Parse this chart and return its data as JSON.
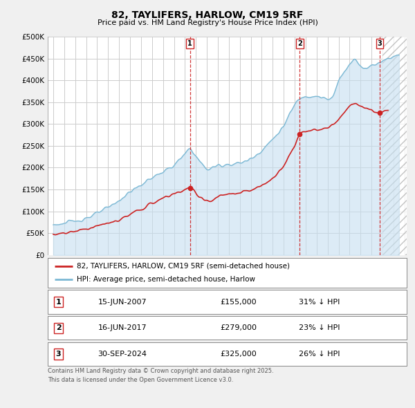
{
  "title": "82, TAYLIFERS, HARLOW, CM19 5RF",
  "subtitle": "Price paid vs. HM Land Registry's House Price Index (HPI)",
  "bg_color": "#f0f0f0",
  "plot_bg": "#ffffff",
  "grid_color": "#cccccc",
  "hpi_color": "#7bb8d4",
  "hpi_fill": "#c5dff0",
  "price_color": "#cc2222",
  "vline_color": "#cc2222",
  "ylim": [
    0,
    500000
  ],
  "yticks": [
    0,
    50000,
    100000,
    150000,
    200000,
    250000,
    300000,
    350000,
    400000,
    450000,
    500000
  ],
  "ytick_labels": [
    "£0",
    "£50K",
    "£100K",
    "£150K",
    "£200K",
    "£250K",
    "£300K",
    "£350K",
    "£400K",
    "£450K",
    "£500K"
  ],
  "xlim_start": 1994.5,
  "xlim_end": 2027.2,
  "hatch_start": 2025.0,
  "transactions": [
    {
      "num": 1,
      "date_label": "15-JUN-2007",
      "price": 155000,
      "pct": "31%",
      "x": 2007.45
    },
    {
      "num": 2,
      "date_label": "16-JUN-2017",
      "price": 279000,
      "pct": "23%",
      "x": 2017.45
    },
    {
      "num": 3,
      "date_label": "30-SEP-2024",
      "price": 325000,
      "pct": "26%",
      "x": 2024.75
    }
  ],
  "legend_label_price": "82, TAYLIFERS, HARLOW, CM19 5RF (semi-detached house)",
  "legend_label_hpi": "HPI: Average price, semi-detached house, Harlow",
  "footer1": "Contains HM Land Registry data © Crown copyright and database right 2025.",
  "footer2": "This data is licensed under the Open Government Licence v3.0."
}
